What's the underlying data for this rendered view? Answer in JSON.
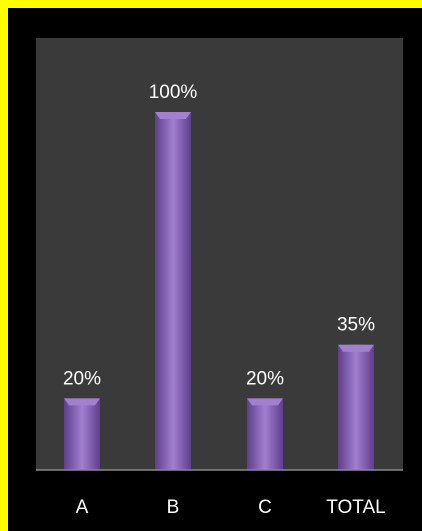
{
  "chart_data": {
    "type": "bar",
    "categories": [
      "A",
      "B",
      "C",
      "TOTAL"
    ],
    "values": [
      20,
      100,
      20,
      35
    ],
    "data_labels": [
      "20%",
      "100%",
      "20%",
      "35%"
    ],
    "ylim": [
      0,
      100
    ],
    "grid": false,
    "legend": "none",
    "colors": {
      "frame": "#ffff00",
      "page_background": "#000000",
      "plot_background": "#3a3a3a",
      "bar": "#7b57ad",
      "bar_highlight": "#a27fd0",
      "bar_shadow": "#5e3f8c",
      "axis_line": "#8a8a8a",
      "text": "#ffffff"
    }
  }
}
